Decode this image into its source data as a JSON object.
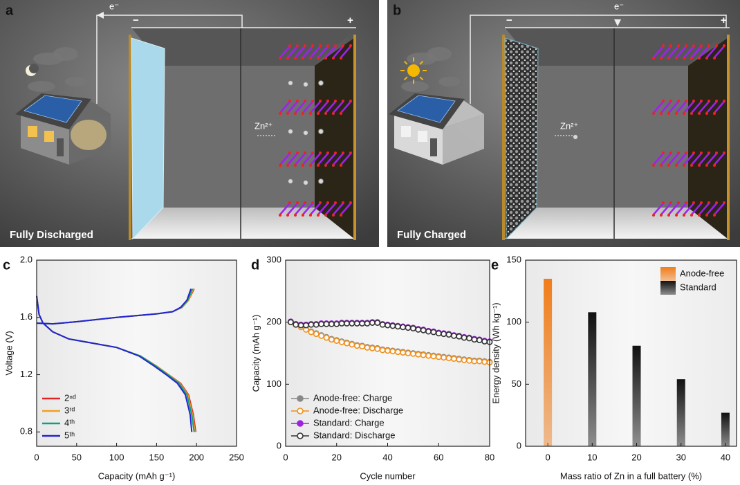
{
  "illustrations": [
    {
      "panel": "a",
      "electron": "e⁻",
      "negative": "−",
      "positive": "+",
      "ion": "Zn²⁺",
      "caption": "Fully Discharged"
    },
    {
      "panel": "b",
      "electron": "e⁻",
      "negative": "−",
      "positive": "+",
      "ion": "Zn²⁺",
      "caption": "Fully Charged"
    }
  ],
  "chart_data": [
    {
      "type": "line",
      "panel_label": "c",
      "xlabel": "Capacity (mAh g⁻¹)",
      "ylabel": "Voltage (V)",
      "xlim": [
        0,
        250
      ],
      "ylim": [
        0.7,
        2.0
      ],
      "xticks": [
        0,
        50,
        100,
        150,
        200,
        250
      ],
      "yticks": [
        0.8,
        1.2,
        1.6,
        {
          "value": 2,
          "label": "2.0"
        }
      ],
      "legend": "lower left",
      "series": [
        {
          "name": "2ⁿᵈ",
          "color": "#e02424",
          "charge": {
            "x": [
              0,
              20,
              50,
              100,
              150,
              170,
              182,
              190,
              197
            ],
            "values": [
              1.56,
              1.555,
              1.57,
              1.6,
              1.625,
              1.64,
              1.67,
              1.72,
              1.8
            ]
          },
          "discharge": {
            "x": [
              0,
              3,
              8,
              20,
              40,
              70,
              100,
              130,
              150,
              165,
              180,
              190,
              196,
              199
            ],
            "values": [
              1.75,
              1.62,
              1.56,
              1.5,
              1.45,
              1.42,
              1.39,
              1.33,
              1.26,
              1.2,
              1.14,
              1.06,
              0.92,
              0.8
            ]
          }
        },
        {
          "name": "3ʳᵈ",
          "color": "#f0a020",
          "charge": {
            "x": [
              0,
              20,
              50,
              100,
              150,
              170,
              182,
              190,
              196
            ],
            "values": [
              1.56,
              1.555,
              1.57,
              1.6,
              1.625,
              1.64,
              1.67,
              1.72,
              1.8
            ]
          },
          "discharge": {
            "x": [
              0,
              3,
              8,
              20,
              40,
              70,
              100,
              130,
              150,
              165,
              179,
              189,
              195,
              198
            ],
            "values": [
              1.75,
              1.62,
              1.56,
              1.5,
              1.45,
              1.42,
              1.39,
              1.33,
              1.26,
              1.2,
              1.14,
              1.06,
              0.92,
              0.8
            ]
          }
        },
        {
          "name": "4ᵗʰ",
          "color": "#10a080",
          "charge": {
            "x": [
              0,
              20,
              50,
              100,
              150,
              170,
              181,
              189,
              195
            ],
            "values": [
              1.56,
              1.555,
              1.57,
              1.6,
              1.625,
              1.64,
              1.67,
              1.72,
              1.8
            ]
          },
          "discharge": {
            "x": [
              0,
              3,
              8,
              20,
              40,
              70,
              100,
              130,
              149,
              164,
              178,
              188,
              194,
              197
            ],
            "values": [
              1.75,
              1.62,
              1.56,
              1.5,
              1.45,
              1.42,
              1.39,
              1.33,
              1.26,
              1.2,
              1.14,
              1.06,
              0.92,
              0.8
            ]
          }
        },
        {
          "name": "5ᵗʰ",
          "color": "#2424d0",
          "charge": {
            "x": [
              0,
              20,
              50,
              100,
              150,
              170,
              180,
              188,
              193
            ],
            "values": [
              1.56,
              1.555,
              1.57,
              1.6,
              1.625,
              1.64,
              1.67,
              1.72,
              1.8
            ]
          },
          "discharge": {
            "x": [
              0,
              3,
              8,
              20,
              40,
              70,
              100,
              128,
              147,
              162,
              176,
              186,
              192,
              194
            ],
            "values": [
              1.75,
              1.62,
              1.56,
              1.5,
              1.45,
              1.42,
              1.39,
              1.33,
              1.26,
              1.2,
              1.14,
              1.06,
              0.92,
              0.8
            ]
          }
        }
      ]
    },
    {
      "type": "scatter",
      "panel_label": "d",
      "xlabel": "Cycle number",
      "ylabel": "Capacity (mAh g⁻¹)",
      "xlim": [
        0,
        80
      ],
      "ylim": [
        0,
        300
      ],
      "xticks": [
        0,
        20,
        40,
        60,
        80
      ],
      "yticks": [
        0,
        100,
        200,
        300
      ],
      "legend": "lower left",
      "x": [
        2,
        4,
        6,
        8,
        10,
        12,
        14,
        16,
        18,
        20,
        22,
        24,
        26,
        28,
        30,
        32,
        34,
        36,
        38,
        40,
        42,
        44,
        46,
        48,
        50,
        52,
        54,
        56,
        58,
        60,
        62,
        64,
        66,
        68,
        70,
        72,
        74,
        76,
        78,
        80
      ],
      "series": [
        {
          "name": "Anode-free: Charge",
          "color": "#888888",
          "filled": true,
          "values": [
            201,
            197,
            193,
            189,
            185,
            182,
            179,
            176,
            173,
            171,
            169,
            167,
            165,
            163,
            162,
            160,
            159,
            158,
            156,
            155,
            154,
            153,
            152,
            151,
            150,
            149,
            148,
            147,
            146,
            145,
            144,
            143,
            142,
            141,
            140,
            139,
            138,
            138,
            137,
            136
          ]
        },
        {
          "name": "Anode-free: Discharge",
          "color": "#f0901a",
          "filled": false,
          "values": [
            200,
            196,
            192,
            188,
            184,
            181,
            178,
            175,
            172,
            170,
            168,
            166,
            164,
            162,
            161,
            159,
            158,
            157,
            155,
            154,
            153,
            152,
            151,
            150,
            149,
            148,
            147,
            146,
            145,
            144,
            143,
            142,
            141,
            140,
            139,
            138,
            137,
            137,
            136,
            135
          ]
        },
        {
          "name": "Standard: Charge",
          "color": "#a020e0",
          "filled": true,
          "values": [
            201,
            197,
            196,
            196,
            197,
            197,
            198,
            198,
            198,
            198,
            199,
            199,
            199,
            199,
            199,
            199,
            200,
            200,
            197,
            196,
            195,
            194,
            193,
            192,
            191,
            189,
            188,
            186,
            185,
            183,
            182,
            181,
            179,
            178,
            176,
            175,
            173,
            172,
            170,
            169
          ]
        },
        {
          "name": "Standard: Discharge",
          "color": "#333333",
          "filled": false,
          "values": [
            200,
            196,
            195,
            195,
            196,
            196,
            197,
            197,
            197,
            197,
            198,
            198,
            198,
            198,
            198,
            198,
            199,
            199,
            196,
            195,
            194,
            193,
            192,
            191,
            190,
            188,
            187,
            185,
            184,
            182,
            181,
            180,
            178,
            177,
            175,
            174,
            172,
            171,
            169,
            168
          ]
        }
      ]
    },
    {
      "type": "bar",
      "panel_label": "e",
      "xlabel": "Mass ratio of Zn in a full battery (%)",
      "ylabel": "Energy density (Wh kg⁻¹)",
      "xlim": [
        -5,
        42.5
      ],
      "ylim": [
        0,
        150
      ],
      "xticks": [
        0,
        10,
        20,
        30,
        40
      ],
      "yticks": [
        0,
        50,
        100,
        150
      ],
      "legend": "upper right",
      "x": [
        0,
        10,
        20,
        30,
        40
      ],
      "series": [
        {
          "name": "Anode-free",
          "color": "#f07d1a",
          "values": [
            135,
            null,
            null,
            null,
            null
          ]
        },
        {
          "name": "Standard",
          "color": "#111111",
          "values": [
            null,
            108,
            81,
            54,
            27
          ]
        }
      ]
    }
  ]
}
